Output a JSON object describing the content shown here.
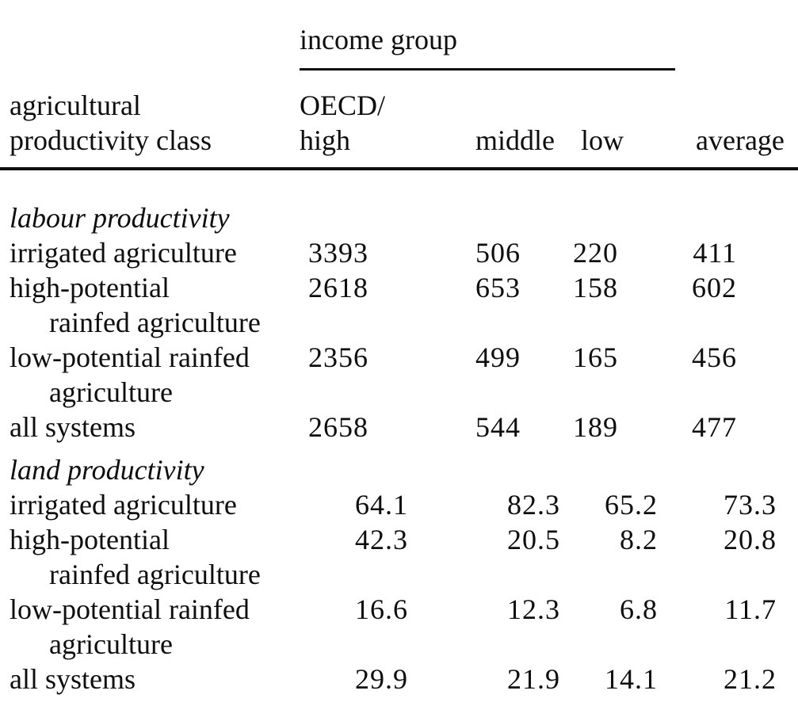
{
  "page": {
    "background_color": "#ffffff",
    "ink_color": "#0e0e0e"
  },
  "table": {
    "spanner_label": "income group",
    "row_header": {
      "line1": "agricultural",
      "line2": "productivity class"
    },
    "columns": [
      {
        "line1": "OECD/",
        "line2": "high"
      },
      {
        "line1": "middle"
      },
      {
        "line1": "low"
      },
      {
        "line1": "average"
      }
    ],
    "sections": [
      {
        "title": "labour productivity",
        "rows": [
          {
            "label1": "irrigated agriculture",
            "label2": "",
            "values": [
              "3393",
              "506",
              "220",
              "411"
            ]
          },
          {
            "label1": "high-potential",
            "label2": "rainfed agriculture",
            "values": [
              "2618",
              "653",
              "158",
              "602"
            ]
          },
          {
            "label1": "low-potential rainfed",
            "label2": "agriculture",
            "values": [
              "2356",
              "499",
              "165",
              "456"
            ]
          },
          {
            "label1": "all systems",
            "label2": "",
            "values": [
              "2658",
              "544",
              "189",
              "477"
            ]
          }
        ]
      },
      {
        "title": "land productivity",
        "rows": [
          {
            "label1": "irrigated agriculture",
            "label2": "",
            "values": [
              "64.1",
              "82.3",
              "65.2",
              "73.3"
            ]
          },
          {
            "label1": "high-potential",
            "label2": "rainfed agriculture",
            "values": [
              "42.3",
              "20.5",
              "8.2",
              "20.8"
            ]
          },
          {
            "label1": "low-potential rainfed",
            "label2": "agriculture",
            "values": [
              "16.6",
              "12.3",
              "6.8",
              "11.7"
            ]
          },
          {
            "label1": "all systems",
            "label2": "",
            "values": [
              "29.9",
              "21.9",
              "14.1",
              "21.2"
            ]
          }
        ]
      }
    ]
  }
}
